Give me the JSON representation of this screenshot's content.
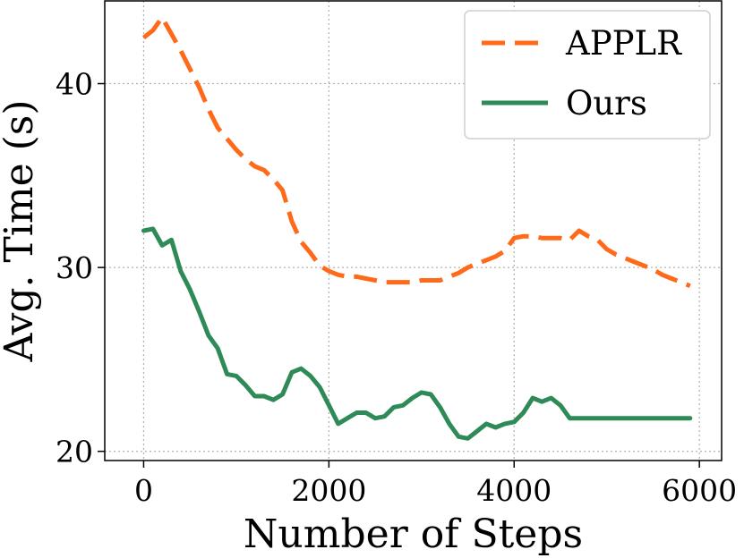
{
  "chart_data": {
    "type": "line",
    "title": "",
    "xlabel": "Number of Steps",
    "ylabel": "Avg. Time (s)",
    "xlim": [
      -420,
      6240
    ],
    "ylim": [
      19.5,
      44.5
    ],
    "xticks": [
      0,
      2000,
      4000,
      6000
    ],
    "yticks": [
      20,
      30,
      40
    ],
    "grid": true,
    "legend": "top-right",
    "series": [
      {
        "name": "APPLR",
        "color": "#ff6a1a",
        "dash": "dashed",
        "x": [
          0,
          100,
          200,
          300,
          400,
          500,
          600,
          700,
          800,
          900,
          1000,
          1100,
          1200,
          1300,
          1400,
          1500,
          1600,
          1700,
          1800,
          1900,
          2000,
          2100,
          2200,
          2300,
          2400,
          2500,
          2600,
          2700,
          2800,
          2900,
          3000,
          3100,
          3200,
          3300,
          3400,
          3500,
          3600,
          3700,
          3800,
          3900,
          4000,
          4100,
          4200,
          4300,
          4400,
          4500,
          4600,
          4700,
          4800,
          4900,
          5000,
          5100,
          5200,
          5300,
          5400,
          5500,
          5600,
          5700,
          5800,
          5900
        ],
        "y": [
          42.5,
          42.9,
          43.6,
          42.7,
          41.8,
          40.8,
          39.8,
          38.6,
          37.6,
          37.0,
          36.4,
          35.9,
          35.5,
          35.3,
          34.8,
          34.2,
          32.5,
          31.4,
          30.8,
          30.1,
          29.8,
          29.6,
          29.5,
          29.5,
          29.4,
          29.3,
          29.2,
          29.2,
          29.2,
          29.2,
          29.3,
          29.3,
          29.3,
          29.5,
          29.7,
          30.0,
          30.2,
          30.4,
          30.6,
          30.9,
          31.6,
          31.7,
          31.7,
          31.6,
          31.6,
          31.6,
          31.5,
          32.0,
          31.7,
          31.5,
          31.0,
          30.7,
          30.5,
          30.3,
          30.1,
          29.9,
          29.6,
          29.4,
          29.2,
          29.0
        ]
      },
      {
        "name": "Ours",
        "color": "#2e8b57",
        "dash": "solid",
        "x": [
          0,
          100,
          200,
          300,
          400,
          500,
          600,
          700,
          800,
          900,
          1000,
          1100,
          1200,
          1300,
          1400,
          1500,
          1600,
          1700,
          1800,
          1900,
          2000,
          2100,
          2200,
          2300,
          2400,
          2500,
          2600,
          2700,
          2800,
          2900,
          3000,
          3100,
          3200,
          3300,
          3400,
          3500,
          3600,
          3700,
          3800,
          3900,
          4000,
          4100,
          4200,
          4300,
          4400,
          4500,
          4600,
          4700,
          4800,
          4900,
          5000,
          5100,
          5200,
          5300,
          5400,
          5500,
          5600,
          5700,
          5800,
          5900
        ],
        "y": [
          32.0,
          32.1,
          31.2,
          31.5,
          29.8,
          28.8,
          27.6,
          26.3,
          25.6,
          24.2,
          24.1,
          23.6,
          23.0,
          23.0,
          22.8,
          23.1,
          24.3,
          24.5,
          24.1,
          23.5,
          22.5,
          21.5,
          21.8,
          22.1,
          22.1,
          21.8,
          21.9,
          22.4,
          22.5,
          22.9,
          23.2,
          23.1,
          22.4,
          21.5,
          20.8,
          20.7,
          21.1,
          21.5,
          21.3,
          21.5,
          21.6,
          22.1,
          22.9,
          22.7,
          22.9,
          22.5,
          21.8,
          21.8,
          21.8,
          21.8,
          21.8,
          21.8,
          21.8,
          21.8,
          21.8,
          21.8,
          21.8,
          21.8,
          21.8,
          21.8
        ]
      }
    ]
  }
}
